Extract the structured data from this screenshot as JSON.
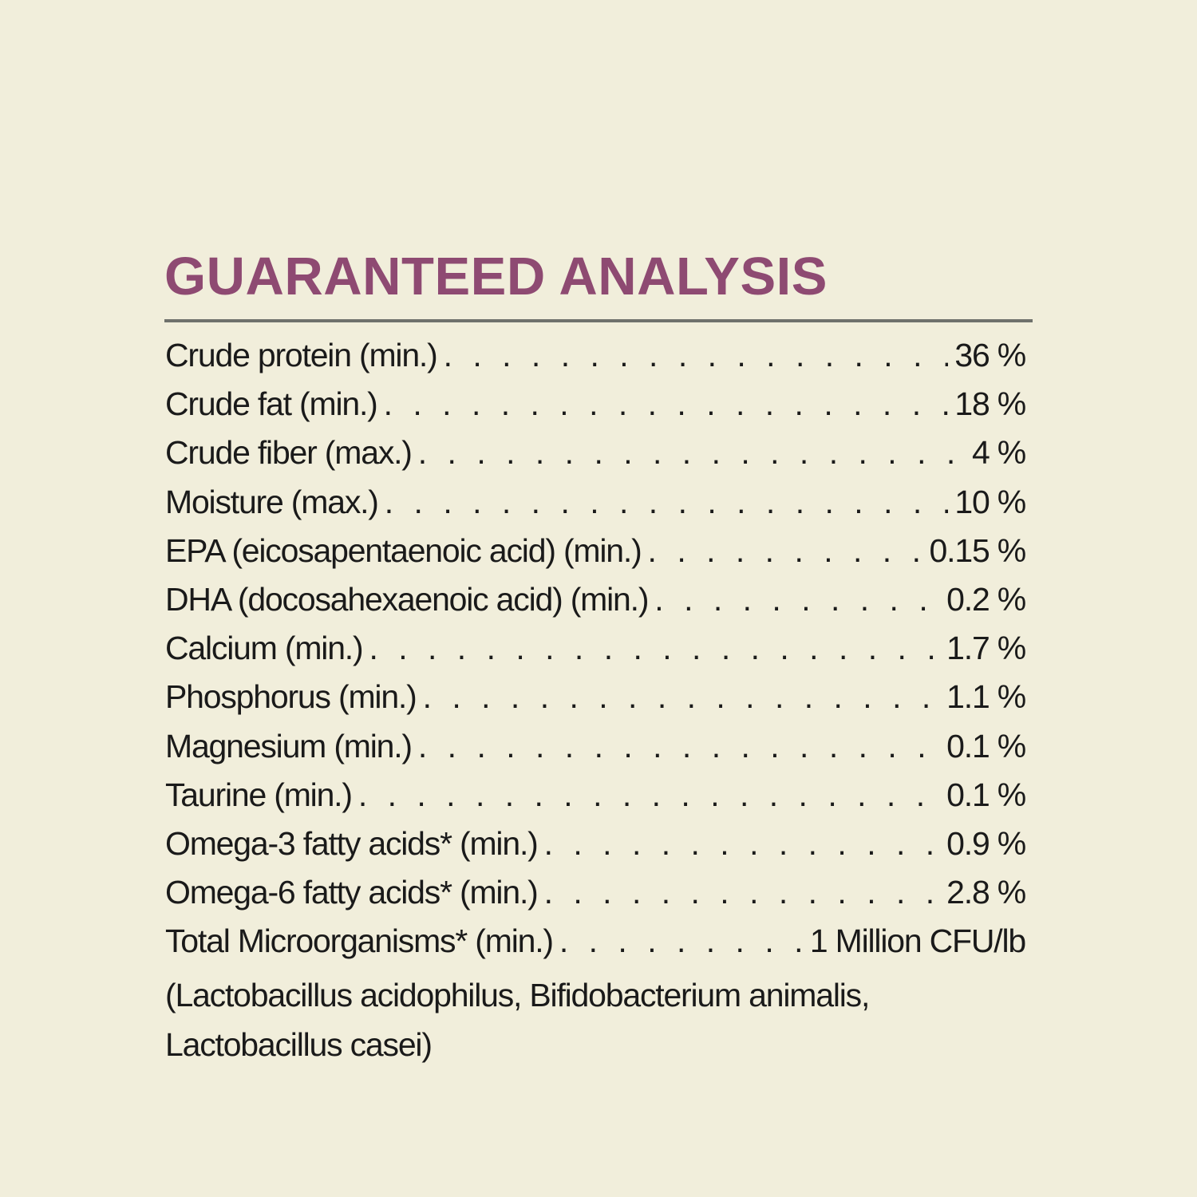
{
  "title": "GUARANTEED ANALYSIS",
  "colors": {
    "background": "#f1eedb",
    "title": "#8e4a72",
    "rule": "#6f716c",
    "text": "#1a1a1a"
  },
  "rows": [
    {
      "label": "Crude protein (min.)",
      "value": "36 %"
    },
    {
      "label": "Crude fat (min.)",
      "value": "18 %"
    },
    {
      "label": "Crude fiber (max.)",
      "value": "4 %"
    },
    {
      "label": "Moisture (max.)",
      "value": "10 %"
    },
    {
      "label": "EPA (eicosapentaenoic acid) (min.)",
      "value": "0.15 %"
    },
    {
      "label": "DHA (docosahexaenoic acid) (min.)",
      "value": "0.2 %"
    },
    {
      "label": "Calcium (min.)",
      "value": "1.7 %"
    },
    {
      "label": "Phosphorus (min.)",
      "value": "1.1 %"
    },
    {
      "label": "Magnesium (min.)",
      "value": "0.1 %"
    },
    {
      "label": "Taurine (min.)",
      "value": "0.1 %"
    },
    {
      "label": "Omega-3 fatty acids* (min.)",
      "value": "0.9 %"
    },
    {
      "label": "Omega-6 fatty acids* (min.)",
      "value": "2.8 %"
    },
    {
      "label": "Total Microorganisms* (min.)",
      "value": "1 Million CFU/lb"
    }
  ],
  "note_lines": [
    "(Lactobacillus acidophilus, Bifidobacterium animalis,",
    "Lactobacillus casei)"
  ]
}
